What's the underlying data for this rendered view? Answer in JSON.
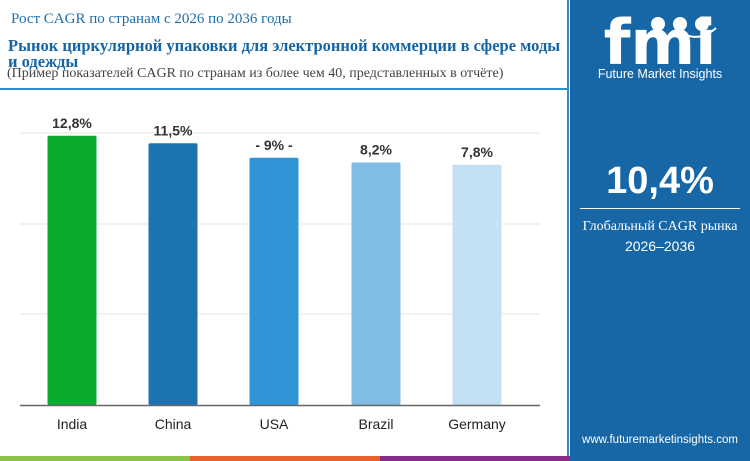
{
  "header": {
    "supertitle": "Рост CAGR по странам с 2026 по 2036 годы",
    "title": "Рынок циркулярной упаковки для электронной коммерции в сфере моды и одежды",
    "subtitle": "(Пример показателей CAGR по странам из более чем 40, представленных в отчёте)"
  },
  "sidebar": {
    "brand": "Future Market Insights",
    "logo_text": "fmi",
    "global_cagr": "10,4%",
    "global_label": "Глобальный CAGR рынка",
    "period": "2026–2036",
    "url": "www.futuremarketinsights.com",
    "bg_color": "#1767a6"
  },
  "chart_data": {
    "type": "bar",
    "categories": [
      "India",
      "China",
      "USA",
      "Brazil",
      "Germany"
    ],
    "values": [
      12.8,
      11.5,
      9,
      8.2,
      7.8
    ],
    "labels": [
      "12,8%",
      "11,5%",
      "- 9% -",
      "8,2%",
      "7,8%"
    ],
    "colors": [
      "#08ab2c",
      "#1c73b0",
      "#3095d7",
      "#80bce3",
      "#c3e1f2"
    ],
    "grid": true,
    "title": "",
    "xlabel": "",
    "ylabel": ""
  },
  "footer_strip_colors": [
    "#8bc34a",
    "#e8612c",
    "#8a2c8a"
  ]
}
